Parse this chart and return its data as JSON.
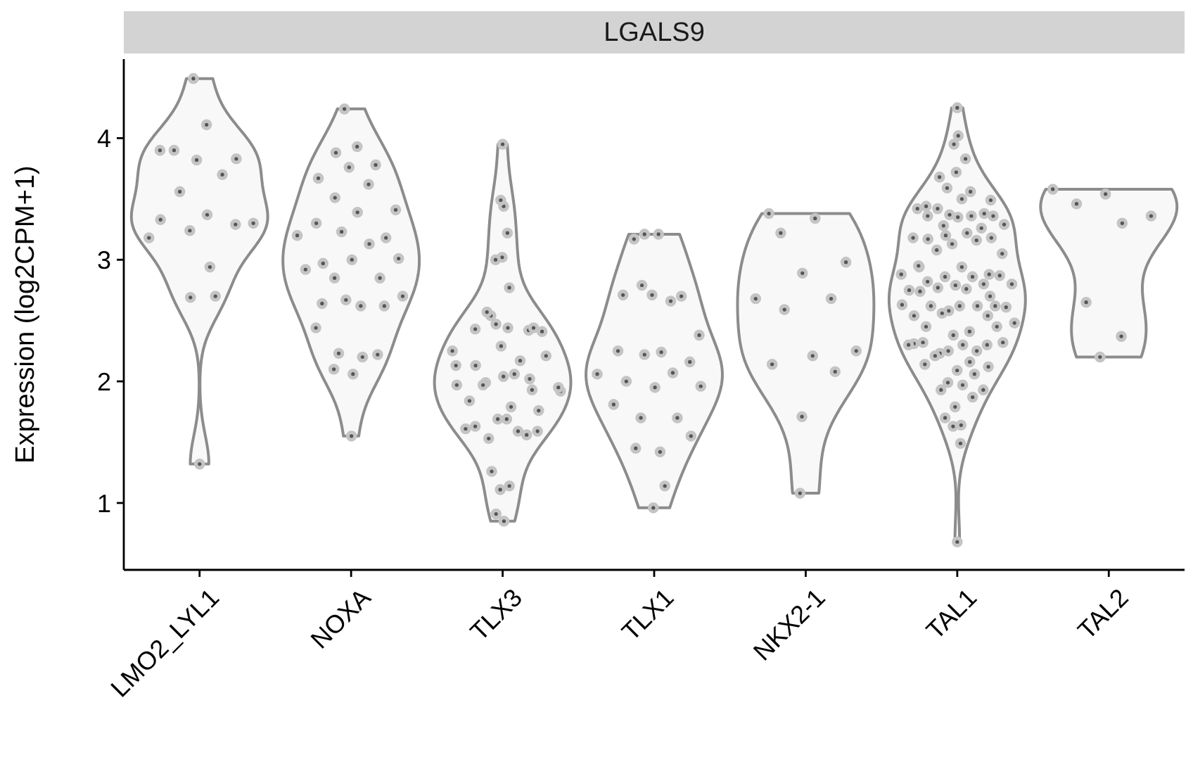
{
  "chart_data": {
    "type": "scatter",
    "title": "LGALS9",
    "ylabel": "Expression (log2CPM+1)",
    "categories": [
      "LMO2_LYL1",
      "NOXA",
      "TLX3",
      "TLX1",
      "NKX2-1",
      "TAL1",
      "TAL2"
    ],
    "ylim": [
      0.45,
      4.65
    ],
    "yticks": [
      1,
      2,
      3,
      4
    ],
    "marker": "circle",
    "series": [
      {
        "color": "#555555",
        "x": [
          "LMO2_LYL1",
          "LMO2_LYL1",
          "LMO2_LYL1",
          "LMO2_LYL1",
          "LMO2_LYL1",
          "LMO2_LYL1",
          "LMO2_LYL1",
          "LMO2_LYL1",
          "LMO2_LYL1",
          "LMO2_LYL1",
          "LMO2_LYL1",
          "LMO2_LYL1",
          "LMO2_LYL1",
          "LMO2_LYL1",
          "LMO2_LYL1",
          "LMO2_LYL1",
          "LMO2_LYL1",
          "LMO2_LYL1"
        ],
        "values": [
          4.49,
          4.11,
          3.9,
          3.83,
          3.82,
          3.9,
          3.7,
          3.56,
          3.3,
          3.37,
          3.33,
          3.29,
          3.24,
          3.18,
          2.94,
          2.69,
          2.7,
          1.32
        ]
      },
      {
        "color": "#555555",
        "x": [
          "NOXA",
          "NOXA",
          "NOXA",
          "NOXA",
          "NOXA",
          "NOXA",
          "NOXA",
          "NOXA",
          "NOXA",
          "NOXA",
          "NOXA",
          "NOXA",
          "NOXA",
          "NOXA",
          "NOXA",
          "NOXA",
          "NOXA",
          "NOXA",
          "NOXA",
          "NOXA",
          "NOXA",
          "NOXA",
          "NOXA",
          "NOXA",
          "NOXA",
          "NOXA",
          "NOXA",
          "NOXA",
          "NOXA",
          "NOXA",
          "NOXA",
          "NOXA",
          "NOXA"
        ],
        "values": [
          4.24,
          3.93,
          3.88,
          3.78,
          3.76,
          3.67,
          3.62,
          3.51,
          3.41,
          3.39,
          3.3,
          3.18,
          3.23,
          3.2,
          3.13,
          2.97,
          3.01,
          3.0,
          2.92,
          2.85,
          2.85,
          2.7,
          2.62,
          2.64,
          2.62,
          2.67,
          2.44,
          2.2,
          2.23,
          2.22,
          2.06,
          2.1,
          1.55
        ]
      },
      {
        "color": "#555555",
        "x": [
          "TLX3",
          "TLX3",
          "TLX3",
          "TLX3",
          "TLX3",
          "TLX3",
          "TLX3",
          "TLX3",
          "TLX3",
          "TLX3",
          "TLX3",
          "TLX3",
          "TLX3",
          "TLX3",
          "TLX3",
          "TLX3",
          "TLX3",
          "TLX3",
          "TLX3",
          "TLX3",
          "TLX3",
          "TLX3",
          "TLX3",
          "TLX3",
          "TLX3",
          "TLX3",
          "TLX3",
          "TLX3",
          "TLX3",
          "TLX3",
          "TLX3",
          "TLX3",
          "TLX3",
          "TLX3",
          "TLX3",
          "TLX3",
          "TLX3",
          "TLX3",
          "TLX3",
          "TLX3",
          "TLX3",
          "TLX3",
          "TLX3",
          "TLX3",
          "TLX3",
          "TLX3"
        ],
        "values": [
          3.95,
          3.44,
          3.49,
          3.22,
          3.02,
          3.0,
          2.77,
          2.54,
          2.41,
          2.44,
          2.43,
          2.42,
          2.47,
          2.25,
          2.17,
          2.13,
          2.21,
          2.04,
          1.97,
          1.93,
          1.99,
          1.92,
          2.06,
          1.84,
          1.76,
          1.69,
          1.61,
          1.59,
          1.53,
          1.59,
          1.69,
          1.26,
          1.14,
          1.11,
          0.91,
          0.85,
          2.57,
          2.44,
          2.29,
          2.13,
          2.02,
          1.97,
          1.95,
          1.79,
          1.63,
          1.56
        ]
      },
      {
        "color": "#555555",
        "x": [
          "TLX1",
          "TLX1",
          "TLX1",
          "TLX1",
          "TLX1",
          "TLX1",
          "TLX1",
          "TLX1",
          "TLX1",
          "TLX1",
          "TLX1",
          "TLX1",
          "TLX1",
          "TLX1",
          "TLX1",
          "TLX1",
          "TLX1",
          "TLX1",
          "TLX1",
          "TLX1",
          "TLX1",
          "TLX1",
          "TLX1",
          "TLX1",
          "TLX1",
          "TLX1"
        ],
        "values": [
          3.17,
          3.21,
          3.21,
          2.7,
          2.71,
          2.71,
          2.66,
          2.79,
          2.38,
          2.24,
          2.25,
          2.16,
          2.22,
          2.06,
          2.07,
          2.0,
          1.96,
          1.95,
          1.81,
          1.7,
          1.7,
          1.55,
          1.42,
          1.45,
          1.14,
          0.96
        ]
      },
      {
        "color": "#555555",
        "x": [
          "NKX2-1",
          "NKX2-1",
          "NKX2-1",
          "NKX2-1",
          "NKX2-1",
          "NKX2-1",
          "NKX2-1",
          "NKX2-1",
          "NKX2-1",
          "NKX2-1",
          "NKX2-1",
          "NKX2-1",
          "NKX2-1",
          "NKX2-1"
        ],
        "values": [
          3.38,
          3.34,
          3.22,
          2.98,
          2.89,
          2.68,
          2.68,
          2.59,
          2.25,
          2.21,
          2.14,
          2.08,
          1.71,
          1.08
        ]
      },
      {
        "color": "#555555",
        "x": [
          "TAL1",
          "TAL1",
          "TAL1",
          "TAL1",
          "TAL1",
          "TAL1",
          "TAL1",
          "TAL1",
          "TAL1",
          "TAL1",
          "TAL1",
          "TAL1",
          "TAL1",
          "TAL1",
          "TAL1",
          "TAL1",
          "TAL1",
          "TAL1",
          "TAL1",
          "TAL1",
          "TAL1",
          "TAL1",
          "TAL1",
          "TAL1",
          "TAL1",
          "TAL1",
          "TAL1",
          "TAL1",
          "TAL1",
          "TAL1",
          "TAL1",
          "TAL1",
          "TAL1",
          "TAL1",
          "TAL1",
          "TAL1",
          "TAL1",
          "TAL1",
          "TAL1",
          "TAL1",
          "TAL1",
          "TAL1",
          "TAL1",
          "TAL1",
          "TAL1",
          "TAL1",
          "TAL1",
          "TAL1",
          "TAL1",
          "TAL1",
          "TAL1",
          "TAL1",
          "TAL1",
          "TAL1",
          "TAL1",
          "TAL1",
          "TAL1",
          "TAL1",
          "TAL1",
          "TAL1",
          "TAL1",
          "TAL1",
          "TAL1",
          "TAL1",
          "TAL1",
          "TAL1",
          "TAL1",
          "TAL1",
          "TAL1",
          "TAL1",
          "TAL1",
          "TAL1",
          "TAL1",
          "TAL1",
          "TAL1",
          "TAL1",
          "TAL1",
          "TAL1",
          "TAL1",
          "TAL1",
          "TAL1",
          "TAL1",
          "TAL1",
          "TAL1",
          "TAL1",
          "TAL1",
          "TAL1",
          "TAL1",
          "TAL1"
        ],
        "values": [
          4.25,
          4.02,
          3.95,
          3.83,
          3.72,
          3.68,
          3.56,
          3.59,
          3.49,
          3.5,
          3.36,
          3.38,
          3.37,
          3.42,
          3.36,
          3.42,
          3.36,
          3.35,
          3.44,
          3.26,
          3.28,
          3.29,
          3.22,
          3.17,
          3.18,
          3.13,
          3.18,
          3.16,
          3.08,
          3.05,
          2.94,
          2.94,
          2.88,
          2.86,
          2.88,
          2.86,
          2.82,
          2.87,
          2.79,
          2.75,
          2.8,
          2.77,
          2.8,
          2.76,
          2.74,
          2.62,
          2.58,
          2.63,
          2.62,
          2.62,
          2.61,
          2.62,
          2.54,
          2.54,
          2.56,
          2.48,
          2.41,
          2.45,
          2.45,
          2.38,
          2.31,
          2.25,
          2.23,
          2.32,
          2.3,
          2.32,
          2.3,
          2.25,
          2.3,
          2.16,
          2.21,
          2.12,
          2.09,
          2.14,
          2.06,
          1.99,
          1.93,
          1.97,
          1.93,
          1.87,
          1.79,
          1.7,
          1.64,
          1.63,
          1.49,
          0.68,
          2.95,
          2.7,
          3.2
        ]
      },
      {
        "color": "#555555",
        "x": [
          "TAL2",
          "TAL2",
          "TAL2",
          "TAL2",
          "TAL2",
          "TAL2",
          "TAL2",
          "TAL2"
        ],
        "values": [
          3.58,
          3.3,
          3.46,
          3.36,
          3.54,
          2.65,
          2.37,
          2.2
        ]
      }
    ]
  }
}
